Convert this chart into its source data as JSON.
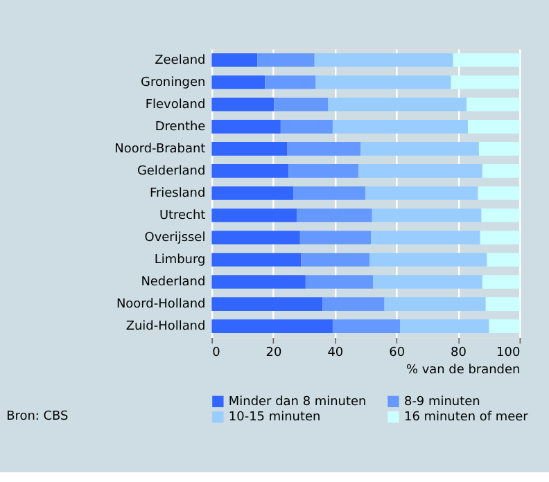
{
  "chart_data": {
    "type": "bar",
    "orientation": "horizontal",
    "stacked": true,
    "categories": [
      "Zeeland",
      "Groningen",
      "Flevoland",
      "Drenthe",
      "Noord-Brabant",
      "Gelderland",
      "Friesland",
      "Utrecht",
      "Overijssel",
      "Limburg",
      "Nederland",
      "Noord-Holland",
      "Zuid-Holland"
    ],
    "series": [
      {
        "name": "Minder dan 8 minuten",
        "color": "#3366ff",
        "values": [
          14.8,
          17.3,
          20.2,
          22.4,
          24.6,
          25.0,
          26.5,
          27.6,
          28.7,
          29.0,
          30.5,
          36.0,
          39.3
        ]
      },
      {
        "name": "8-9 minuten",
        "color": "#6699ff",
        "values": [
          18.6,
          16.5,
          17.6,
          16.9,
          23.8,
          22.7,
          23.4,
          24.5,
          23.0,
          22.3,
          21.9,
          20.1,
          21.9
        ]
      },
      {
        "name": "10-15 minuten",
        "color": "#99ccff",
        "values": [
          45.0,
          43.9,
          45.0,
          43.9,
          38.4,
          40.2,
          36.6,
          35.5,
          35.5,
          38.1,
          35.5,
          32.9,
          28.9
        ]
      },
      {
        "name": "16 minuten of meer",
        "color": "#ccffff",
        "values": [
          21.6,
          22.3,
          17.2,
          16.8,
          13.2,
          12.1,
          13.5,
          12.4,
          12.8,
          10.6,
          12.1,
          11.0,
          9.9
        ]
      }
    ],
    "xlim": [
      0,
      100
    ],
    "xticks": [
      0,
      20,
      40,
      60,
      80,
      100
    ],
    "xlabel": "% van de branden",
    "grid": "x",
    "legend": "bottom",
    "annotations": [
      "Bron: CBS"
    ]
  }
}
